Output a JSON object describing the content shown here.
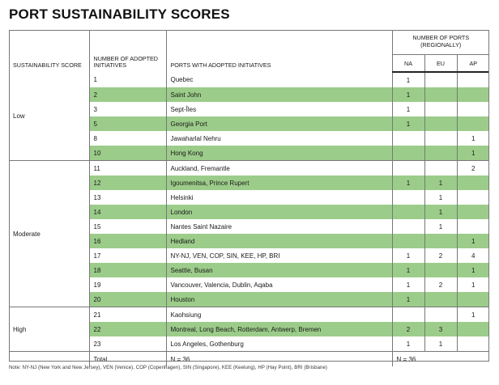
{
  "title": "PORT SUSTAINABILITY SCORES",
  "headers": {
    "score": "SUSTAINABILITY SCORE",
    "num": "NUMBER OF ADOPTED INITIATIVES",
    "ports": "PORTS WITH ADOPTED INITIATIVES",
    "group": "NUMBER OF PORTS (REGIONALLY)",
    "regions": [
      "NA",
      "EU",
      "AP"
    ]
  },
  "sections": [
    {
      "score": "Low",
      "rows": [
        {
          "n": "1",
          "ports": "Quebec",
          "na": "1",
          "eu": "",
          "ap": "",
          "shaded": false
        },
        {
          "n": "2",
          "ports": "Saint John",
          "na": "1",
          "eu": "",
          "ap": "",
          "shaded": true
        },
        {
          "n": "3",
          "ports": "Sept-Îles",
          "na": "1",
          "eu": "",
          "ap": "",
          "shaded": false
        },
        {
          "n": "5",
          "ports": "Georgia Port",
          "na": "1",
          "eu": "",
          "ap": "",
          "shaded": true
        },
        {
          "n": "8",
          "ports": "Jawaharlal Nehru",
          "na": "",
          "eu": "",
          "ap": "1",
          "shaded": false
        },
        {
          "n": "10",
          "ports": "Hong Kong",
          "na": "",
          "eu": "",
          "ap": "1",
          "shaded": true
        }
      ]
    },
    {
      "score": "Moderate",
      "rows": [
        {
          "n": "11",
          "ports": "Auckland, Fremantle",
          "na": "",
          "eu": "",
          "ap": "2",
          "shaded": false
        },
        {
          "n": "12",
          "ports": "Igoumenitsa, Prince Rupert",
          "na": "1",
          "eu": "1",
          "ap": "",
          "shaded": true
        },
        {
          "n": "13",
          "ports": "Helsinki",
          "na": "",
          "eu": "1",
          "ap": "",
          "shaded": false
        },
        {
          "n": "14",
          "ports": "London",
          "na": "",
          "eu": "1",
          "ap": "",
          "shaded": true
        },
        {
          "n": "15",
          "ports": "Nantes Saint Nazaire",
          "na": "",
          "eu": "1",
          "ap": "",
          "shaded": false
        },
        {
          "n": "16",
          "ports": "Hedland",
          "na": "",
          "eu": "",
          "ap": "1",
          "shaded": true
        },
        {
          "n": "17",
          "ports": "NY-NJ, VEN, COP, SIN, KEE, HP, BRI",
          "na": "1",
          "eu": "2",
          "ap": "4",
          "shaded": false
        },
        {
          "n": "18",
          "ports": "Seattle, Busan",
          "na": "1",
          "eu": "",
          "ap": "1",
          "shaded": true
        },
        {
          "n": "19",
          "ports": "Vancouver, Valencia, Dublin, Aqaba",
          "na": "1",
          "eu": "2",
          "ap": "1",
          "shaded": false
        },
        {
          "n": "20",
          "ports": "Houston",
          "na": "1",
          "eu": "",
          "ap": "",
          "shaded": true
        }
      ]
    },
    {
      "score": "High",
      "rows": [
        {
          "n": "21",
          "ports": "Kaohsiung",
          "na": "",
          "eu": "",
          "ap": "1",
          "shaded": false
        },
        {
          "n": "22",
          "ports": "Montreal, Long Beach, Rotterdam, Antwerp, Bremen",
          "na": "2",
          "eu": "3",
          "ap": "",
          "shaded": true
        },
        {
          "n": "23",
          "ports": "Los Angeles, Gothenburg",
          "na": "1",
          "eu": "1",
          "ap": "",
          "shaded": false
        }
      ]
    }
  ],
  "total": {
    "label": "Total",
    "ports": "N = 36",
    "regional": "N = 36"
  },
  "note": "Note: NY-NJ (New York and New Jersey), VEN (Venice), COP (Copenhagen), SIN (Singapore), KEE (Keelung), HP (Hay Point), BRI (Brisbane)",
  "colors": {
    "shade": "#9ccc8a",
    "rule": "#777777"
  }
}
